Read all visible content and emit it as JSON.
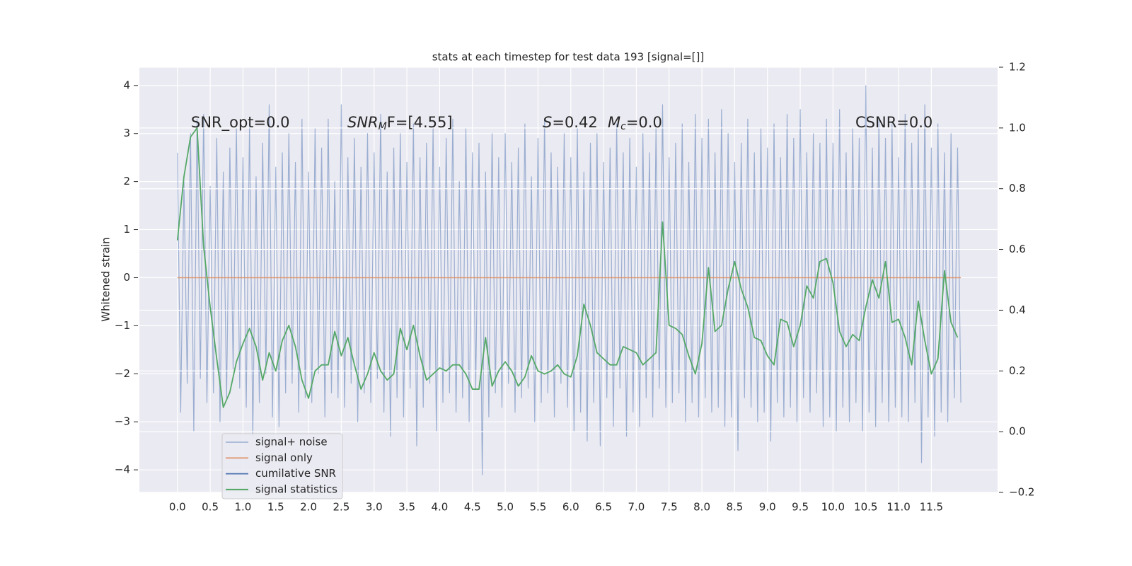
{
  "chart_data": {
    "type": "line",
    "title": "stats at each timestep for test data 193 [signal=[]]",
    "ylabel": "Whitened strain",
    "xlim": [
      -0.58,
      12.51
    ],
    "ylim": [
      -4.47,
      4.38
    ],
    "y2lim": [
      -0.2,
      1.2
    ],
    "grid": true,
    "legend": "lower left",
    "xticks": [
      {
        "value": 0,
        "label": "0.0"
      },
      0.5,
      {
        "value": 1,
        "label": "1.0"
      },
      1.5,
      {
        "value": 2,
        "label": "2.0"
      },
      2.5,
      {
        "value": 3,
        "label": "3.0"
      },
      3.5,
      {
        "value": 4,
        "label": "4.0"
      },
      4.5,
      {
        "value": 5,
        "label": "5.0"
      },
      5.5,
      {
        "value": 6,
        "label": "6.0"
      },
      6.5,
      {
        "value": 7,
        "label": "7.0"
      },
      7.5,
      {
        "value": 8,
        "label": "8.0"
      },
      8.5,
      {
        "value": 9,
        "label": "9.0"
      },
      9.5,
      {
        "value": 10,
        "label": "10.0"
      },
      10.5,
      {
        "value": 11,
        "label": "11.0"
      },
      11.5
    ],
    "yticks": [
      {
        "value": -4,
        "label": "−4"
      },
      {
        "value": -3,
        "label": "−3"
      },
      {
        "value": -2,
        "label": "−2"
      },
      {
        "value": -1,
        "label": "−1"
      },
      0,
      1,
      2,
      3,
      4
    ],
    "y2ticks": [
      {
        "value": -0.2,
        "label": "−0.2"
      },
      {
        "value": 0,
        "label": "0.0"
      },
      0.2,
      0.4,
      0.6,
      0.8,
      {
        "value": 1,
        "label": "1.0"
      },
      1.2
    ],
    "annotations": [
      [
        "SNR_opt=0.0"
      ],
      [
        "SNR",
        "M",
        "F=[4.55]"
      ],
      [
        "S",
        "=0.42"
      ],
      [
        "M",
        "c",
        "=0.0"
      ],
      [
        "CSNR=0.0"
      ]
    ],
    "series": [
      {
        "name": "signal+ noise",
        "color": "#4c72b0",
        "x": [
          0,
          0.05,
          0.1,
          0.15,
          0.2,
          0.25,
          0.3,
          0.35,
          0.4,
          0.45,
          0.5,
          0.55,
          0.6,
          0.65,
          0.7,
          0.75,
          0.8,
          0.85,
          0.9,
          0.95,
          1,
          1.05,
          1.1,
          1.15,
          1.2,
          1.25,
          1.3,
          1.35,
          1.4,
          1.45,
          1.5,
          1.55,
          1.6,
          1.65,
          1.7,
          1.75,
          1.8,
          1.85,
          1.9,
          1.95,
          2,
          2.05,
          2.1,
          2.15,
          2.2,
          2.25,
          2.3,
          2.35,
          2.4,
          2.45,
          2.5,
          2.55,
          2.6,
          2.65,
          2.7,
          2.75,
          2.8,
          2.85,
          2.9,
          2.95,
          3,
          3.05,
          3.1,
          3.15,
          3.2,
          3.25,
          3.3,
          3.35,
          3.4,
          3.45,
          3.5,
          3.55,
          3.6,
          3.65,
          3.7,
          3.75,
          3.8,
          3.85,
          3.9,
          3.95,
          4,
          4.05,
          4.1,
          4.15,
          4.2,
          4.25,
          4.3,
          4.35,
          4.4,
          4.45,
          4.5,
          4.55,
          4.6,
          4.65,
          4.7,
          4.75,
          4.8,
          4.85,
          4.9,
          4.95,
          5,
          5.05,
          5.1,
          5.15,
          5.2,
          5.25,
          5.3,
          5.35,
          5.4,
          5.45,
          5.5,
          5.55,
          5.6,
          5.65,
          5.7,
          5.75,
          5.8,
          5.85,
          5.9,
          5.95,
          6,
          6.05,
          6.1,
          6.15,
          6.2,
          6.25,
          6.3,
          6.35,
          6.4,
          6.45,
          6.5,
          6.55,
          6.6,
          6.65,
          6.7,
          6.75,
          6.8,
          6.85,
          6.9,
          6.95,
          7,
          7.05,
          7.1,
          7.15,
          7.2,
          7.25,
          7.3,
          7.35,
          7.4,
          7.45,
          7.5,
          7.55,
          7.6,
          7.65,
          7.7,
          7.75,
          7.8,
          7.85,
          7.9,
          7.95,
          8,
          8.05,
          8.1,
          8.15,
          8.2,
          8.25,
          8.3,
          8.35,
          8.4,
          8.45,
          8.5,
          8.55,
          8.6,
          8.65,
          8.7,
          8.75,
          8.8,
          8.85,
          8.9,
          8.95,
          9,
          9.05,
          9.1,
          9.15,
          9.2,
          9.25,
          9.3,
          9.35,
          9.4,
          9.45,
          9.5,
          9.55,
          9.6,
          9.65,
          9.7,
          9.75,
          9.8,
          9.85,
          9.9,
          9.95,
          10,
          10.05,
          10.1,
          10.15,
          10.2,
          10.25,
          10.3,
          10.35,
          10.4,
          10.45,
          10.5,
          10.55,
          10.6,
          10.65,
          10.7,
          10.75,
          10.8,
          10.85,
          10.9,
          10.95,
          11,
          11.05,
          11.1,
          11.15,
          11.2,
          11.25,
          11.3,
          11.35,
          11.4,
          11.45,
          11.5,
          11.55,
          11.6,
          11.65,
          11.7,
          11.75,
          11.8,
          11.85,
          11.9,
          11.95
        ],
        "values": [
          2.6,
          -2.8,
          2.0,
          -2.2,
          3.0,
          -3.2,
          3.3,
          -2.1,
          3.4,
          -2.6,
          1.9,
          -2.4,
          2.9,
          -3.0,
          2.2,
          -2.5,
          2.7,
          -1.9,
          3.1,
          -2.3,
          2.5,
          -2.7,
          3.2,
          -3.3,
          2.1,
          -2.6,
          2.8,
          -2.0,
          3.6,
          -2.9,
          2.3,
          -3.1,
          2.6,
          -2.4,
          3.0,
          -2.2,
          2.4,
          -2.8,
          3.3,
          -2.5,
          2.2,
          -2.6,
          3.1,
          -2.0,
          2.7,
          -2.9,
          3.3,
          -2.4,
          2.0,
          -2.5,
          3.6,
          -2.7,
          2.5,
          -2.2,
          2.9,
          -3.0,
          2.3,
          -2.4,
          3.0,
          -2.6,
          2.6,
          -2.1,
          3.4,
          -2.8,
          2.2,
          -3.3,
          2.7,
          -2.5,
          3.0,
          -2.9,
          2.4,
          -2.3,
          3.2,
          -3.5,
          2.5,
          -2.7,
          2.8,
          -2.2,
          3.1,
          -3.2,
          2.3,
          -2.6,
          2.9,
          -2.4,
          3.3,
          -2.8,
          2.0,
          -2.5,
          3.1,
          -3.0,
          2.6,
          -2.3,
          2.8,
          -4.1,
          2.2,
          -2.9,
          3.0,
          -2.4,
          2.5,
          -2.7,
          3.0,
          -2.2,
          2.4,
          -2.8,
          2.7,
          -2.5,
          3.2,
          -2.3,
          2.1,
          -3.0,
          2.9,
          -2.6,
          3.3,
          -2.4,
          2.6,
          -2.9,
          2.3,
          -2.2,
          3.0,
          -2.7,
          2.5,
          -3.2,
          3.1,
          -2.8,
          2.2,
          -3.4,
          2.8,
          -2.6,
          3.0,
          -3.5,
          2.4,
          -2.5,
          2.7,
          -3.1,
          3.2,
          -2.3,
          2.6,
          -3.3,
          2.9,
          -2.8,
          2.3,
          -3.1,
          3.0,
          -2.5,
          2.6,
          -2.9,
          3.1,
          -2.3,
          3.6,
          -2.7,
          2.5,
          -2.6,
          2.8,
          -2.4,
          3.2,
          -3.0,
          2.4,
          -2.6,
          3.4,
          -2.9,
          2.9,
          -2.5,
          3.3,
          -2.8,
          2.6,
          -2.7,
          3.5,
          -3.1,
          3.0,
          -2.9,
          2.4,
          -3.6,
          2.8,
          -2.5,
          3.3,
          -2.7,
          2.6,
          -3.0,
          3.1,
          -2.8,
          2.7,
          -3.4,
          3.2,
          -2.6,
          2.5,
          -2.9,
          3.4,
          -2.7,
          2.9,
          -3.0,
          3.5,
          -2.5,
          2.6,
          -2.8,
          3.0,
          -2.4,
          2.8,
          -3.1,
          3.3,
          -2.9,
          2.8,
          -3.2,
          3.5,
          -2.7,
          2.6,
          -3.0,
          3.1,
          -2.6,
          2.9,
          -3.2,
          4.0,
          -2.8,
          2.7,
          -3.1,
          3.3,
          -2.6,
          2.9,
          -3.0,
          3.2,
          -2.7,
          2.5,
          -2.9,
          3.4,
          -3.0,
          2.8,
          -2.6,
          3.1,
          -3.85,
          3.6,
          -2.9,
          2.7,
          -3.3,
          3.2,
          -2.8,
          2.6,
          -3.0,
          3.0,
          -2.5,
          2.7,
          -2.6
        ]
      },
      {
        "name": "signal only",
        "color": "#dd8452",
        "x": [
          0,
          11.95
        ],
        "values": [
          0,
          0
        ]
      },
      {
        "name": "cumilative SNR",
        "color": "#4c72b0",
        "x": [],
        "values": []
      },
      {
        "name": "signal statistics",
        "color": "#55a868",
        "axis": "y2",
        "x": [
          0,
          0.1,
          0.2,
          0.3,
          0.4,
          0.5,
          0.6,
          0.7,
          0.8,
          0.9,
          1,
          1.1,
          1.2,
          1.3,
          1.4,
          1.5,
          1.6,
          1.7,
          1.8,
          1.9,
          2,
          2.1,
          2.2,
          2.3,
          2.4,
          2.5,
          2.6,
          2.7,
          2.8,
          2.9,
          3,
          3.1,
          3.2,
          3.3,
          3.4,
          3.5,
          3.6,
          3.7,
          3.8,
          3.9,
          4,
          4.1,
          4.2,
          4.3,
          4.4,
          4.5,
          4.6,
          4.7,
          4.8,
          4.9,
          5,
          5.1,
          5.2,
          5.3,
          5.4,
          5.5,
          5.6,
          5.7,
          5.8,
          5.9,
          6,
          6.1,
          6.2,
          6.3,
          6.4,
          6.5,
          6.6,
          6.7,
          6.8,
          6.9,
          7,
          7.1,
          7.2,
          7.3,
          7.4,
          7.5,
          7.6,
          7.7,
          7.8,
          7.9,
          8,
          8.1,
          8.2,
          8.3,
          8.4,
          8.5,
          8.6,
          8.7,
          8.8,
          8.9,
          9,
          9.1,
          9.2,
          9.3,
          9.4,
          9.5,
          9.6,
          9.7,
          9.8,
          9.9,
          10,
          10.1,
          10.2,
          10.3,
          10.4,
          10.5,
          10.6,
          10.7,
          10.8,
          10.9,
          11,
          11.1,
          11.2,
          11.3,
          11.4,
          11.5,
          11.6,
          11.7,
          11.8,
          11.9
        ],
        "values": [
          0.63,
          0.84,
          0.97,
          1.0,
          0.61,
          0.41,
          0.24,
          0.08,
          0.13,
          0.23,
          0.29,
          0.34,
          0.28,
          0.17,
          0.26,
          0.2,
          0.3,
          0.35,
          0.28,
          0.17,
          0.11,
          0.2,
          0.22,
          0.22,
          0.33,
          0.25,
          0.31,
          0.22,
          0.14,
          0.19,
          0.26,
          0.2,
          0.17,
          0.19,
          0.34,
          0.27,
          0.35,
          0.25,
          0.17,
          0.19,
          0.21,
          0.2,
          0.22,
          0.22,
          0.19,
          0.14,
          0.14,
          0.31,
          0.15,
          0.2,
          0.23,
          0.2,
          0.15,
          0.18,
          0.25,
          0.2,
          0.19,
          0.2,
          0.22,
          0.19,
          0.18,
          0.25,
          0.42,
          0.35,
          0.26,
          0.24,
          0.22,
          0.22,
          0.28,
          0.27,
          0.26,
          0.22,
          0.24,
          0.26,
          0.69,
          0.35,
          0.34,
          0.32,
          0.25,
          0.19,
          0.29,
          0.54,
          0.33,
          0.35,
          0.47,
          0.56,
          0.47,
          0.41,
          0.31,
          0.3,
          0.25,
          0.22,
          0.37,
          0.36,
          0.28,
          0.35,
          0.48,
          0.44,
          0.56,
          0.57,
          0.49,
          0.33,
          0.28,
          0.32,
          0.3,
          0.41,
          0.5,
          0.44,
          0.56,
          0.36,
          0.37,
          0.31,
          0.22,
          0.43,
          0.3,
          0.19,
          0.24,
          0.53,
          0.36,
          0.31
        ]
      }
    ]
  }
}
